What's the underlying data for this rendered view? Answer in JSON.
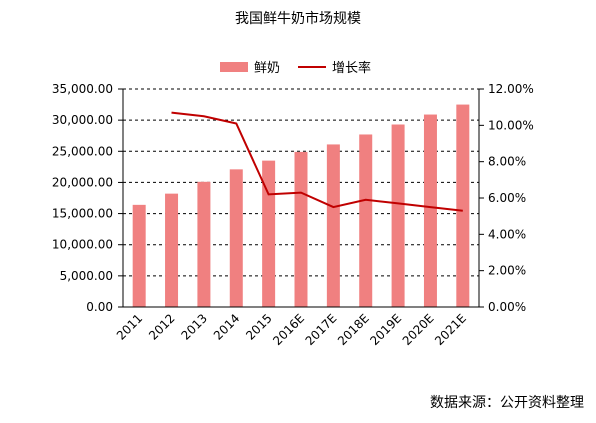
{
  "chart_data": {
    "type": "bar",
    "title": "我国鲜牛奶市场规模",
    "categories": [
      "2011",
      "2012",
      "2013",
      "2014",
      "2015",
      "2016E",
      "2017E",
      "2018E",
      "2019E",
      "2020E",
      "2021E"
    ],
    "series": [
      {
        "name": "鲜奶",
        "type": "bar",
        "axis": "left",
        "values": [
          16400,
          18200,
          20100,
          22100,
          23500,
          24900,
          26100,
          27700,
          29300,
          30900,
          32500
        ]
      },
      {
        "name": "增长率",
        "type": "line",
        "axis": "right",
        "values": [
          null,
          0.107,
          0.105,
          0.101,
          0.062,
          0.063,
          0.055,
          0.059,
          0.057,
          0.055,
          0.053
        ]
      }
    ],
    "y_left": {
      "min": 0,
      "max": 35000,
      "ticks": [
        "0.00",
        "5,000.00",
        "10,000.00",
        "15,000.00",
        "20,000.00",
        "25,000.00",
        "30,000.00",
        "35,000.00"
      ]
    },
    "y_right": {
      "min": 0,
      "max": 0.12,
      "ticks": [
        "0.00%",
        "2.00%",
        "4.00%",
        "6.00%",
        "8.00%",
        "10.00%",
        "12.00%"
      ]
    },
    "grid": "dashed horizontal",
    "legend_position": "top-center",
    "colors": {
      "bar": "#f08080",
      "line": "#c00000"
    }
  },
  "source": "数据来源：公开资料整理"
}
